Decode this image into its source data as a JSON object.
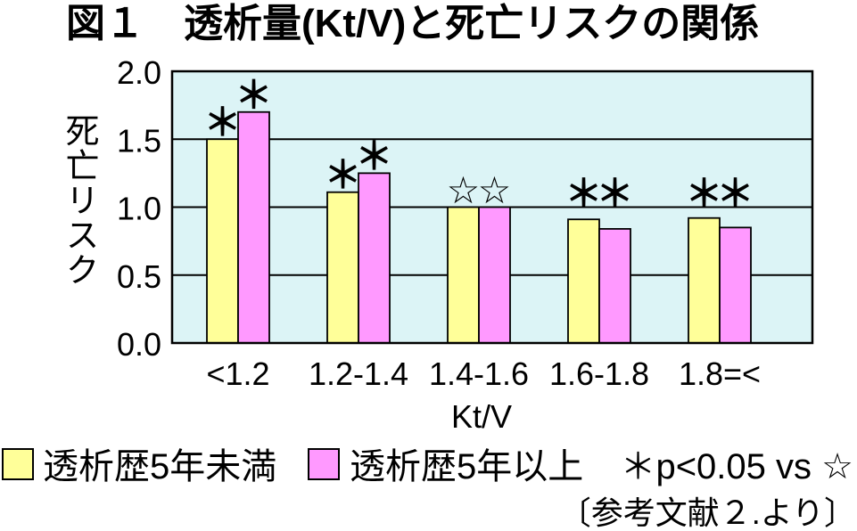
{
  "source": "〔参考文献２.より〕",
  "colors": {
    "plot_background": "#dcf4f6",
    "grid": "#000000"
  },
  "chart_data": {
    "type": "bar",
    "title": "図１　透析量(Kt/V)と死亡リスクの関係",
    "xlabel": "Kt/V",
    "ylabel": "死亡リスク",
    "categories": [
      "<1.2",
      "1.2-1.4",
      "1.4-1.6",
      "1.6-1.8",
      "1.8=<"
    ],
    "series": [
      {
        "name": "透析歴5年未満",
        "color": "#ffff99",
        "values": [
          1.5,
          1.11,
          1.0,
          0.91,
          0.92
        ],
        "markers": [
          "＊",
          "＊",
          "☆",
          "＊",
          "＊"
        ]
      },
      {
        "name": "透析歴5年以上",
        "color": "#ff99ff",
        "values": [
          1.7,
          1.25,
          1.0,
          0.84,
          0.85
        ],
        "markers": [
          "＊",
          "＊",
          "☆",
          "＊",
          "＊"
        ]
      }
    ],
    "ylim": [
      0,
      2.0
    ],
    "yticks": [
      0,
      0.5,
      1.0,
      1.5,
      2.0
    ],
    "ytick_labels": [
      "0.0",
      "0.5",
      "1.0",
      "1.5",
      "2.0"
    ],
    "note": "＊p<0.05 vs ☆",
    "grid": true,
    "legend_position": "bottom"
  }
}
